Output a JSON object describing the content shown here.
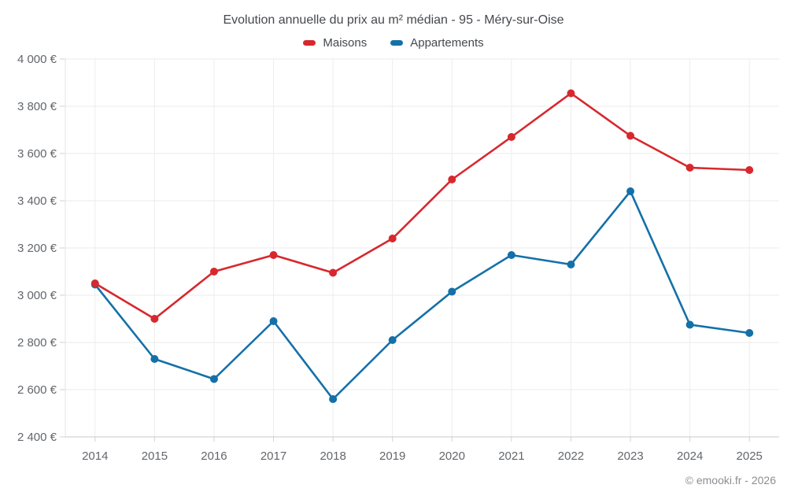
{
  "chart": {
    "title": "Evolution annuelle du prix au m² médian - 95 - Méry-sur-Oise",
    "footer": "© emooki.fr - 2026"
  },
  "legend": [
    {
      "label": "Maisons",
      "color": "#d7282e"
    },
    {
      "label": "Appartements",
      "color": "#1470a8"
    }
  ],
  "chart_data": {
    "type": "line",
    "title": "Evolution annuelle du prix au m² médian - 95 - Méry-sur-Oise",
    "categories": [
      "2014",
      "2015",
      "2016",
      "2017",
      "2018",
      "2019",
      "2020",
      "2021",
      "2022",
      "2023",
      "2024",
      "2025"
    ],
    "series": [
      {
        "name": "Maisons",
        "color": "#d7282e",
        "values": [
          3050,
          2900,
          3100,
          3170,
          3095,
          3240,
          3490,
          3670,
          3855,
          3675,
          3540,
          3530
        ]
      },
      {
        "name": "Appartements",
        "color": "#1470a8",
        "values": [
          3045,
          2730,
          2645,
          2890,
          2560,
          2810,
          3015,
          3170,
          3130,
          3440,
          2875,
          2840
        ]
      }
    ],
    "xlabel": "",
    "ylabel": "",
    "ylim": [
      2400,
      4000
    ],
    "yticks": [
      2400,
      2600,
      2800,
      3000,
      3200,
      3400,
      3600,
      3800,
      4000
    ],
    "ytick_labels": [
      "2 400 €",
      "2 600 €",
      "2 800 €",
      "3 000 €",
      "3 200 €",
      "3 400 €",
      "3 600 €",
      "3 800 €",
      "4 000 €"
    ],
    "grid": true,
    "legend_position": "top"
  }
}
